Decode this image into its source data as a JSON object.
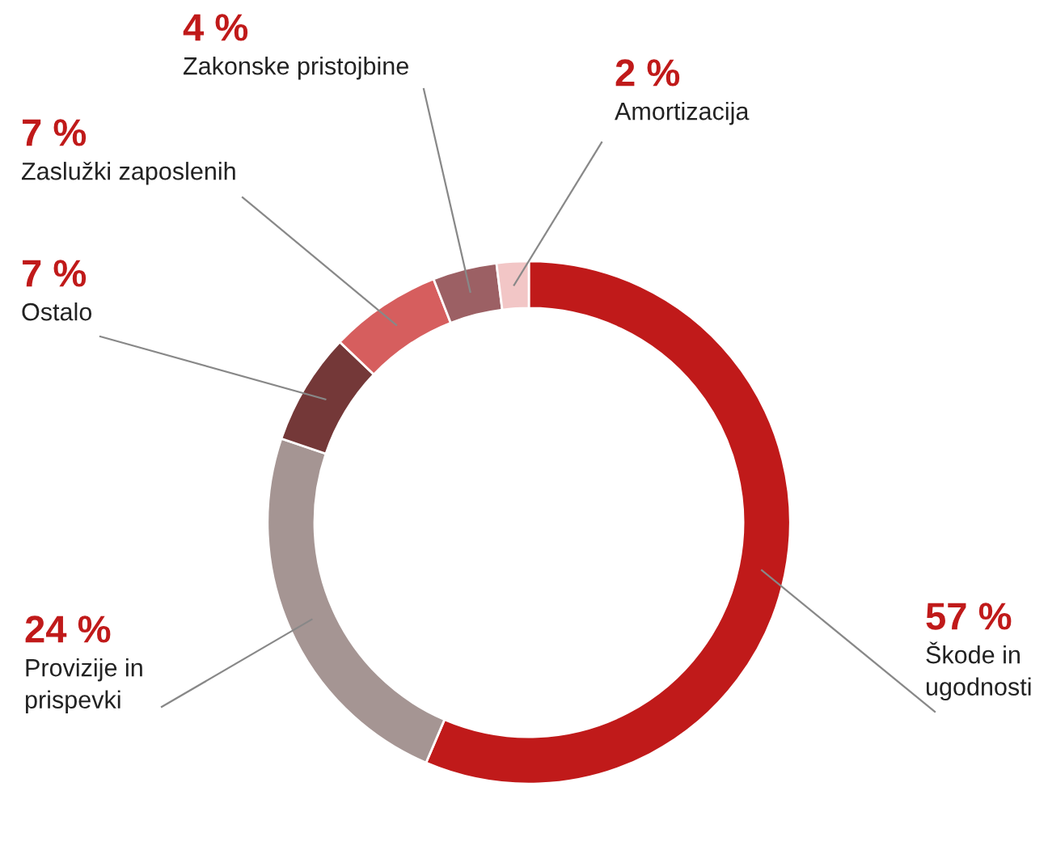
{
  "chart_data": {
    "type": "donut",
    "categories": [
      "Škode in ugodnosti",
      "Provizije in prispevki",
      "Ostalo",
      "Zaslužki zaposlenih",
      "Zakonske pristojbine",
      "Amortizacija"
    ],
    "values": [
      57,
      24,
      7,
      7,
      4,
      2
    ],
    "value_labels": [
      "57 %",
      "24 %",
      "7 %",
      "7 %",
      "4 %",
      "2 %"
    ],
    "colors": [
      "#c01a1a",
      "#a59593",
      "#743838",
      "#d65e5e",
      "#9c6064",
      "#f2c6c6"
    ]
  }
}
